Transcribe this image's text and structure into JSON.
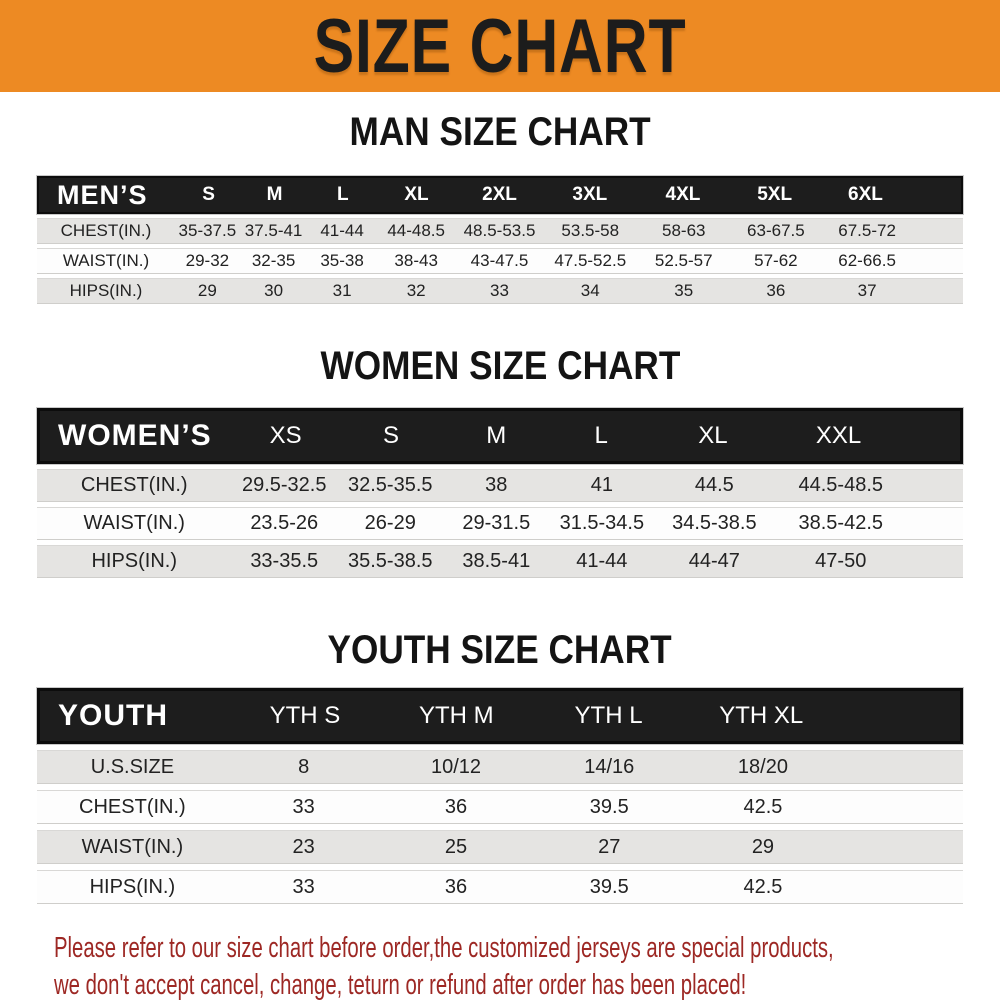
{
  "banner": {
    "title": "SIZE CHART",
    "bg_color": "#ed8a23",
    "text_color": "#1c1c1c"
  },
  "colors": {
    "header_bar_bg": "#1d1d1d",
    "header_bar_text": "#ffffff",
    "row_alt_bg": "#e5e4e2",
    "row_bg": "#fdfdfd",
    "footer_text": "#9d2824"
  },
  "sections": [
    {
      "heading": "MAN SIZE CHART",
      "table": {
        "header_label": "MEN’S",
        "columns": [
          "S",
          "M",
          "L",
          "XL",
          "2XL",
          "3XL",
          "4XL",
          "5XL",
          "6XL"
        ],
        "rows": [
          {
            "label": "CHEST(IN.)",
            "values": [
              "35-37.5",
              "37.5-41",
              "41-44",
              "44-48.5",
              "48.5-53.5",
              "53.5-58",
              "58-63",
              "63-67.5",
              "67.5-72"
            ]
          },
          {
            "label": "WAIST(IN.)",
            "values": [
              "29-32",
              "32-35",
              "35-38",
              "38-43",
              "43-47.5",
              "47.5-52.5",
              "52.5-57",
              "57-62",
              "62-66.5"
            ]
          },
          {
            "label": "HIPS(IN.)",
            "values": [
              "29",
              "30",
              "31",
              "32",
              "33",
              "34",
              "35",
              "36",
              "37"
            ]
          }
        ]
      }
    },
    {
      "heading": "WOMEN SIZE CHART",
      "table": {
        "header_label": "WOMEN’S",
        "columns": [
          "XS",
          "S",
          "M",
          "L",
          "XL",
          "XXL"
        ],
        "rows": [
          {
            "label": "CHEST(IN.)",
            "values": [
              "29.5-32.5",
              "32.5-35.5",
              "38",
              "41",
              "44.5",
              "44.5-48.5"
            ]
          },
          {
            "label": "WAIST(IN.)",
            "values": [
              "23.5-26",
              "26-29",
              "29-31.5",
              "31.5-34.5",
              "34.5-38.5",
              "38.5-42.5"
            ]
          },
          {
            "label": "HIPS(IN.)",
            "values": [
              "33-35.5",
              "35.5-38.5",
              "38.5-41",
              "41-44",
              "44-47",
              "47-50"
            ]
          }
        ]
      }
    },
    {
      "heading": "YOUTH SIZE CHART",
      "table": {
        "header_label": "YOUTH",
        "columns": [
          "YTH S",
          "YTH M",
          "YTH L",
          "YTH XL"
        ],
        "rows": [
          {
            "label": "U.S.SIZE",
            "values": [
              "8",
              "10/12",
              "14/16",
              "18/20"
            ]
          },
          {
            "label": "CHEST(IN.)",
            "values": [
              "33",
              "36",
              "39.5",
              "42.5"
            ]
          },
          {
            "label": "WAIST(IN.)",
            "values": [
              "23",
              "25",
              "27",
              "29"
            ]
          },
          {
            "label": "HIPS(IN.)",
            "values": [
              "33",
              "36",
              "39.5",
              "42.5"
            ]
          }
        ]
      }
    }
  ],
  "footer": {
    "line1": "Please refer to our size chart before order,the customized jerseys are special products,",
    "line2": "we don't accept cancel, change, teturn or refund after order has been placed!"
  }
}
